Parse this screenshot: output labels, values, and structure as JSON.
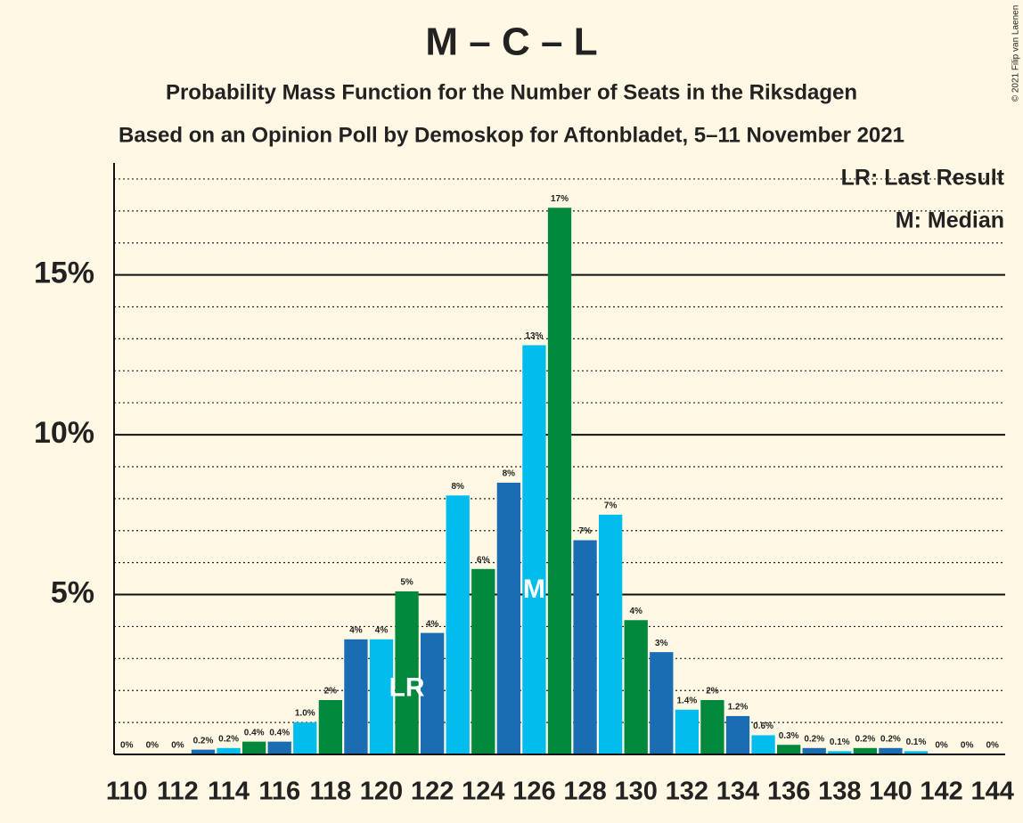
{
  "chart_data": {
    "type": "bar",
    "title": "M – C – L",
    "subtitle": "Probability Mass Function for the Number of Seats in the Riksdagen",
    "subtitle2": "Based on an Opinion Poll by Demoskop for Aftonbladet, 5–11 November 2021",
    "copyright": "© 2021 Filip van Laenen",
    "x": [
      110,
      111,
      112,
      113,
      114,
      115,
      116,
      117,
      118,
      119,
      120,
      121,
      122,
      123,
      124,
      125,
      126,
      127,
      128,
      129,
      130,
      131,
      132,
      133,
      134,
      135,
      136,
      137,
      138,
      139,
      140,
      141,
      142,
      143,
      144
    ],
    "values": [
      0,
      0,
      0,
      0.15,
      0.2,
      0.4,
      0.4,
      1.0,
      1.7,
      3.6,
      3.6,
      5.1,
      3.8,
      8.1,
      5.8,
      8.5,
      12.8,
      17.1,
      6.7,
      7.5,
      4.2,
      3.2,
      1.4,
      1.7,
      1.2,
      0.6,
      0.3,
      0.2,
      0.1,
      0.2,
      0.2,
      0.1,
      0,
      0,
      0
    ],
    "value_labels": [
      "0%",
      "0%",
      "0%",
      "0.2%",
      "0.2%",
      "0.4%",
      "0.4%",
      "1.0%",
      "2%",
      "4%",
      "4%",
      "5%",
      "4%",
      "8%",
      "6%",
      "8%",
      "13%",
      "17%",
      "7%",
      "7%",
      "4%",
      "3%",
      "1.4%",
      "2%",
      "1.2%",
      "0.6%",
      "0.3%",
      "0.2%",
      "0.1%",
      "0.2%",
      "0.2%",
      "0.1%",
      "0%",
      "0%",
      "0%"
    ],
    "color_cycle": [
      "#1a6db3",
      "#00bdee",
      "#00883d"
    ],
    "xlim": [
      109.5,
      144.5
    ],
    "xticks": [
      110,
      112,
      114,
      116,
      118,
      120,
      122,
      124,
      126,
      128,
      130,
      132,
      134,
      136,
      138,
      140,
      142,
      144
    ],
    "ylim": [
      0,
      18.5
    ],
    "yticks": [
      {
        "value": 5,
        "label": "5%"
      },
      {
        "value": 10,
        "label": "10%"
      },
      {
        "value": 15,
        "label": "15%"
      }
    ],
    "minor_yticks": [
      1,
      2,
      3,
      4,
      6,
      7,
      8,
      9,
      11,
      12,
      13,
      14,
      16,
      17,
      18
    ],
    "grid": true,
    "markers": [
      {
        "label": "LR",
        "x": 121
      },
      {
        "label": "M",
        "x": 126
      }
    ],
    "legend": [
      "LR: Last Result",
      "M: Median"
    ]
  }
}
